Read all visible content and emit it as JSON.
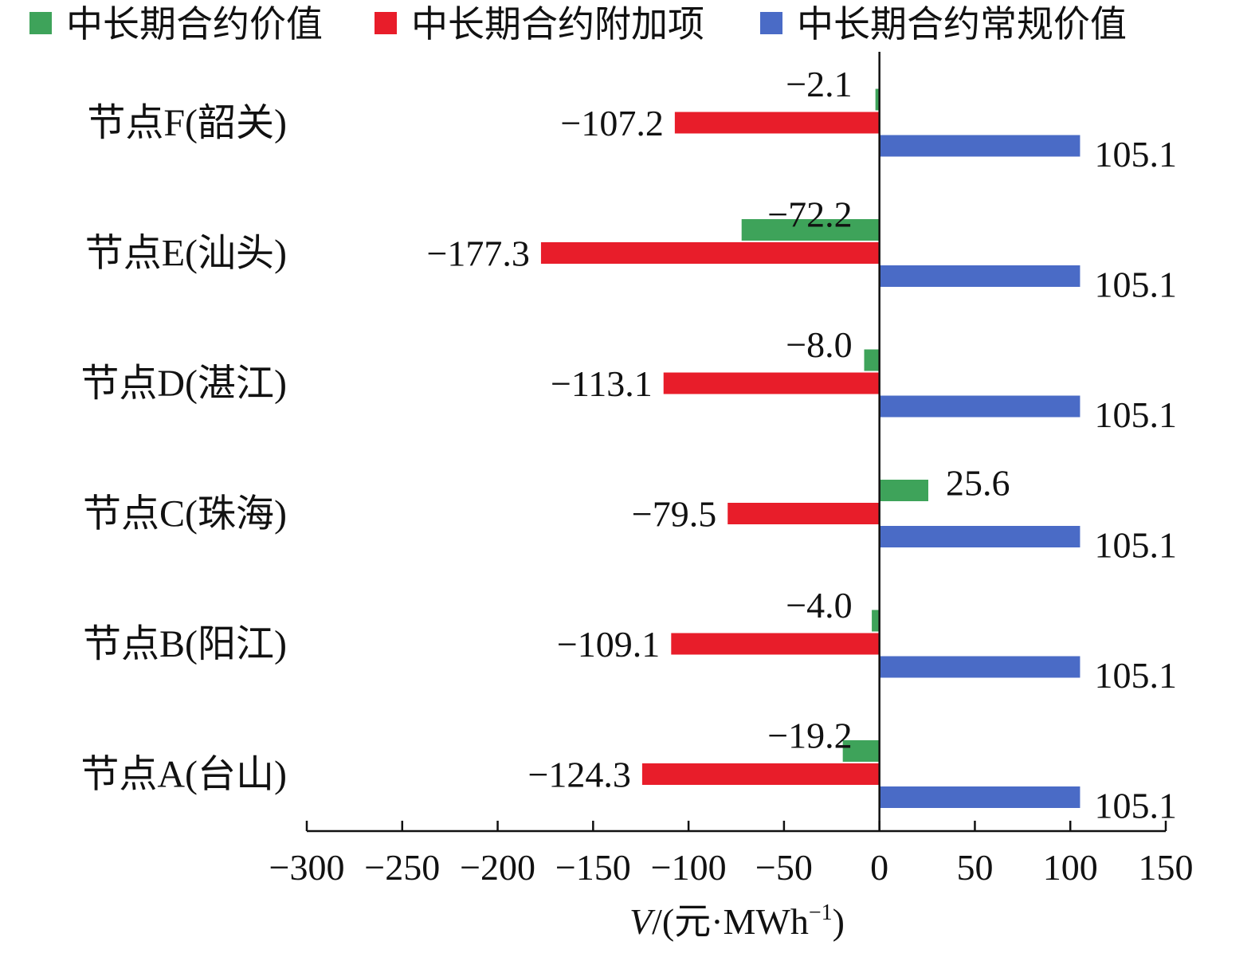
{
  "chart_data": {
    "type": "bar",
    "orientation": "horizontal",
    "title": "",
    "xlabel": "V/(元·MWh⁻¹)",
    "xlabel_parts": {
      "var": "V",
      "rest": "/(元·MWh",
      "sup": "−1",
      "close": ")"
    },
    "ylabel": "",
    "xlim": [
      -300,
      150
    ],
    "xticks": [
      -300,
      -250,
      -200,
      -150,
      -100,
      -50,
      0,
      50,
      100,
      150
    ],
    "xtick_labels": [
      "−300",
      "−250",
      "−200",
      "−150",
      "−100",
      "−50",
      "0",
      "50",
      "100",
      "150"
    ],
    "categories": [
      "节点F(韶关)",
      "节点E(汕头)",
      "节点D(湛江)",
      "节点C(珠海)",
      "节点B(阳江)",
      "节点A(台山)"
    ],
    "legend_position": "top",
    "grid": false,
    "series": [
      {
        "name": "中长期合约价值",
        "color": "#3ea35a",
        "values": [
          -2.1,
          -72.2,
          -8.0,
          25.6,
          -4.0,
          -19.2
        ],
        "value_labels": [
          "−2.1",
          "−72.2",
          "−8.0",
          "25.6",
          "−4.0",
          "−19.2"
        ]
      },
      {
        "name": "中长期合约附加项",
        "color": "#e81d2a",
        "values": [
          -107.2,
          -177.3,
          -113.1,
          -79.5,
          -109.1,
          -124.3
        ],
        "value_labels": [
          "−107.2",
          "−177.3",
          "−113.1",
          "−79.5",
          "−109.1",
          "−124.3"
        ]
      },
      {
        "name": "中长期合约常规价值",
        "color": "#4a6bc6",
        "values": [
          105.1,
          105.1,
          105.1,
          105.1,
          105.1,
          105.1
        ],
        "value_labels": [
          "105.1",
          "105.1",
          "105.1",
          "105.1",
          "105.1",
          "105.1"
        ]
      }
    ]
  }
}
